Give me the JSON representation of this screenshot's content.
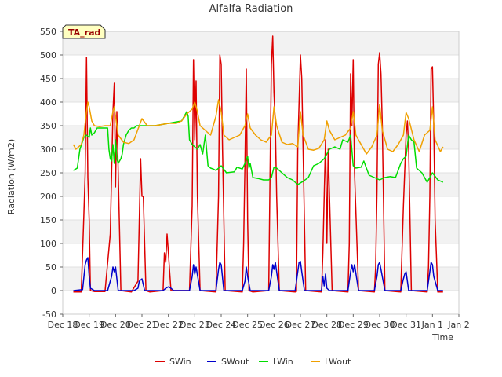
{
  "chart_data": {
    "type": "line",
    "title": "Alfalfa Radiation",
    "xlabel": "Time",
    "ylabel": "Radiation (W/m2)",
    "badge": "TA_rad",
    "ylim": [
      -50,
      550
    ],
    "yticks": [
      -50,
      0,
      50,
      100,
      150,
      200,
      250,
      300,
      350,
      400,
      450,
      500,
      550
    ],
    "xlim": [
      0,
      15
    ],
    "xticks": [
      0,
      1,
      2,
      3,
      4,
      5,
      6,
      7,
      8,
      9,
      10,
      11,
      12,
      13,
      14,
      15
    ],
    "xtick_labels": [
      "Dec 18",
      "Dec 19",
      "Dec 20",
      "Dec 21",
      "Dec 22",
      "Dec 23",
      "Dec 24",
      "Dec 25",
      "Dec 26",
      "Dec 27",
      "Dec 28",
      "Dec 29",
      "Dec 30",
      "Dec 31",
      "Jan 1",
      "Jan 2"
    ],
    "grid": "horizontal bands",
    "legend_position": "bottom",
    "series": [
      {
        "name": "SWin",
        "color": "#dd0000",
        "x": [
          0.4,
          0.7,
          0.8,
          0.85,
          0.9,
          0.95,
          1.0,
          1.05,
          1.2,
          1.6,
          1.8,
          1.9,
          1.95,
          2.0,
          2.05,
          2.2,
          2.6,
          2.85,
          2.9,
          2.95,
          3.0,
          3.05,
          3.15,
          3.3,
          3.8,
          3.85,
          3.9,
          3.95,
          4.0,
          4.05,
          4.1,
          4.2,
          4.8,
          4.9,
          4.95,
          5.0,
          5.05,
          5.1,
          5.2,
          5.8,
          5.9,
          5.95,
          6.0,
          6.05,
          6.15,
          6.8,
          6.85,
          6.9,
          6.95,
          7.0,
          7.05,
          7.2,
          7.8,
          7.85,
          7.9,
          7.95,
          8.0,
          8.05,
          8.1,
          8.2,
          8.8,
          8.85,
          8.9,
          9.0,
          9.05,
          9.1,
          9.2,
          9.8,
          9.85,
          9.9,
          9.95,
          10.0,
          10.05,
          10.2,
          10.8,
          10.85,
          10.9,
          10.95,
          11.0,
          11.05,
          11.2,
          11.8,
          11.85,
          11.9,
          11.95,
          12.0,
          12.05,
          12.1,
          12.2,
          12.8,
          12.9,
          13.0,
          13.05,
          13.1,
          13.2,
          13.8,
          13.85,
          13.9,
          13.95,
          14.0,
          14.05,
          14.1,
          14.2,
          14.4
        ],
        "values": [
          -3,
          -3,
          160,
          250,
          495,
          240,
          150,
          0,
          -2,
          -2,
          120,
          380,
          440,
          220,
          380,
          0,
          -3,
          20,
          150,
          280,
          200,
          200,
          0,
          -3,
          0,
          80,
          60,
          120,
          80,
          40,
          0,
          0,
          0,
          180,
          490,
          320,
          445,
          200,
          0,
          -3,
          200,
          500,
          480,
          300,
          0,
          -3,
          100,
          270,
          470,
          150,
          0,
          -3,
          0,
          250,
          480,
          540,
          420,
          350,
          200,
          0,
          -3,
          -2,
          300,
          500,
          450,
          300,
          0,
          -3,
          80,
          200,
          320,
          100,
          300,
          0,
          -3,
          100,
          460,
          350,
          490,
          250,
          0,
          -3,
          50,
          210,
          480,
          505,
          460,
          350,
          0,
          -3,
          180,
          330,
          360,
          300,
          0,
          -3,
          50,
          200,
          470,
          475,
          350,
          150,
          -3,
          -3
        ]
      },
      {
        "name": "SWout",
        "color": "#0000cc",
        "x": [
          0.4,
          0.75,
          0.85,
          0.9,
          0.95,
          1.0,
          1.05,
          1.2,
          1.7,
          1.85,
          1.9,
          1.95,
          2.0,
          2.1,
          2.7,
          2.85,
          2.9,
          3.0,
          3.1,
          3.8,
          3.9,
          4.0,
          4.1,
          4.2,
          4.8,
          4.9,
          4.95,
          5.0,
          5.05,
          5.2,
          5.8,
          5.9,
          5.95,
          6.0,
          6.1,
          6.8,
          6.9,
          6.95,
          7.0,
          7.1,
          7.8,
          7.9,
          7.95,
          8.0,
          8.05,
          8.1,
          8.2,
          8.8,
          8.9,
          8.95,
          9.0,
          9.05,
          9.15,
          9.8,
          9.85,
          9.9,
          9.95,
          10.0,
          10.1,
          10.8,
          10.9,
          10.95,
          11.0,
          11.05,
          11.2,
          11.8,
          11.9,
          11.95,
          12.0,
          12.05,
          12.2,
          12.8,
          12.9,
          12.95,
          13.0,
          13.1,
          13.8,
          13.9,
          13.95,
          14.0,
          14.05,
          14.2,
          14.4
        ],
        "values": [
          0,
          2,
          55,
          65,
          70,
          30,
          5,
          0,
          0,
          30,
          50,
          40,
          50,
          0,
          0,
          5,
          20,
          25,
          0,
          0,
          5,
          8,
          5,
          0,
          0,
          30,
          55,
          35,
          50,
          0,
          0,
          45,
          60,
          55,
          0,
          0,
          20,
          50,
          30,
          0,
          0,
          30,
          55,
          45,
          60,
          40,
          0,
          0,
          40,
          60,
          62,
          40,
          0,
          0,
          30,
          10,
          35,
          5,
          0,
          0,
          40,
          55,
          40,
          55,
          0,
          0,
          30,
          55,
          60,
          45,
          0,
          0,
          25,
          35,
          40,
          0,
          0,
          40,
          60,
          55,
          30,
          0,
          0
        ]
      },
      {
        "name": "LWin",
        "color": "#00dd00",
        "x": [
          0.4,
          0.55,
          0.65,
          0.8,
          0.9,
          1.0,
          1.05,
          1.1,
          1.2,
          1.3,
          1.5,
          1.7,
          1.75,
          1.8,
          1.85,
          1.9,
          1.95,
          2.0,
          2.05,
          2.1,
          2.15,
          2.2,
          2.25,
          2.3,
          2.4,
          2.5,
          2.6,
          2.7,
          2.8,
          3.0,
          3.5,
          4.0,
          4.5,
          4.6,
          4.7,
          4.75,
          4.8,
          4.9,
          5.0,
          5.1,
          5.2,
          5.3,
          5.4,
          5.5,
          5.6,
          5.7,
          5.8,
          5.9,
          6.0,
          6.2,
          6.5,
          6.6,
          6.8,
          6.9,
          7.0,
          7.05,
          7.1,
          7.2,
          7.4,
          7.6,
          7.8,
          7.9,
          8.0,
          8.1,
          8.3,
          8.5,
          8.7,
          8.9,
          9.1,
          9.3,
          9.5,
          9.7,
          9.9,
          10.0,
          10.1,
          10.3,
          10.5,
          10.6,
          10.8,
          10.9,
          11.0,
          11.1,
          11.3,
          11.4,
          11.6,
          11.8,
          12.0,
          12.2,
          12.4,
          12.6,
          12.8,
          12.9,
          13.0,
          13.1,
          13.2,
          13.3,
          13.4,
          13.6,
          13.8,
          14.0,
          14.2,
          14.4
        ],
        "values": [
          255,
          260,
          300,
          325,
          330,
          325,
          345,
          330,
          335,
          345,
          345,
          345,
          300,
          280,
          275,
          310,
          270,
          320,
          280,
          270,
          275,
          280,
          290,
          310,
          330,
          340,
          345,
          345,
          350,
          350,
          350,
          355,
          360,
          370,
          380,
          370,
          320,
          310,
          305,
          300,
          310,
          290,
          330,
          265,
          260,
          258,
          255,
          260,
          265,
          250,
          252,
          262,
          258,
          270,
          285,
          260,
          270,
          240,
          238,
          235,
          235,
          240,
          262,
          260,
          250,
          240,
          235,
          225,
          232,
          240,
          265,
          270,
          280,
          290,
          300,
          305,
          300,
          320,
          315,
          330,
          265,
          260,
          262,
          275,
          245,
          240,
          235,
          240,
          242,
          240,
          270,
          280,
          285,
          330,
          320,
          315,
          260,
          250,
          230,
          250,
          235,
          230
        ]
      },
      {
        "name": "LWout",
        "color": "#f0a000",
        "x": [
          0.4,
          0.5,
          0.6,
          0.7,
          0.8,
          0.9,
          0.95,
          1.0,
          1.1,
          1.2,
          1.4,
          1.6,
          1.8,
          1.9,
          1.95,
          2.0,
          2.1,
          2.3,
          2.5,
          2.7,
          2.9,
          3.0,
          3.2,
          3.5,
          4.0,
          4.3,
          4.5,
          4.7,
          4.8,
          4.9,
          5.0,
          5.1,
          5.2,
          5.4,
          5.6,
          5.8,
          5.9,
          6.0,
          6.1,
          6.3,
          6.5,
          6.7,
          6.9,
          7.0,
          7.1,
          7.3,
          7.5,
          7.7,
          7.9,
          8.0,
          8.1,
          8.3,
          8.5,
          8.7,
          8.9,
          9.0,
          9.1,
          9.3,
          9.5,
          9.7,
          9.9,
          10.0,
          10.1,
          10.3,
          10.5,
          10.7,
          10.9,
          11.0,
          11.1,
          11.3,
          11.5,
          11.7,
          11.9,
          12.0,
          12.1,
          12.3,
          12.5,
          12.7,
          12.9,
          13.0,
          13.1,
          13.3,
          13.5,
          13.7,
          13.9,
          14.0,
          14.1,
          14.3,
          14.4
        ],
        "values": [
          310,
          300,
          305,
          310,
          330,
          380,
          400,
          390,
          360,
          350,
          348,
          350,
          350,
          380,
          390,
          370,
          330,
          315,
          312,
          320,
          350,
          365,
          350,
          350,
          355,
          355,
          360,
          375,
          380,
          385,
          400,
          380,
          350,
          340,
          330,
          370,
          405,
          380,
          330,
          320,
          325,
          330,
          350,
          375,
          345,
          330,
          320,
          315,
          330,
          390,
          350,
          315,
          310,
          312,
          305,
          380,
          330,
          300,
          298,
          302,
          320,
          360,
          340,
          320,
          325,
          330,
          345,
          380,
          330,
          310,
          290,
          305,
          330,
          395,
          340,
          300,
          295,
          310,
          330,
          378,
          365,
          320,
          295,
          330,
          340,
          390,
          320,
          295,
          305
        ]
      }
    ]
  }
}
